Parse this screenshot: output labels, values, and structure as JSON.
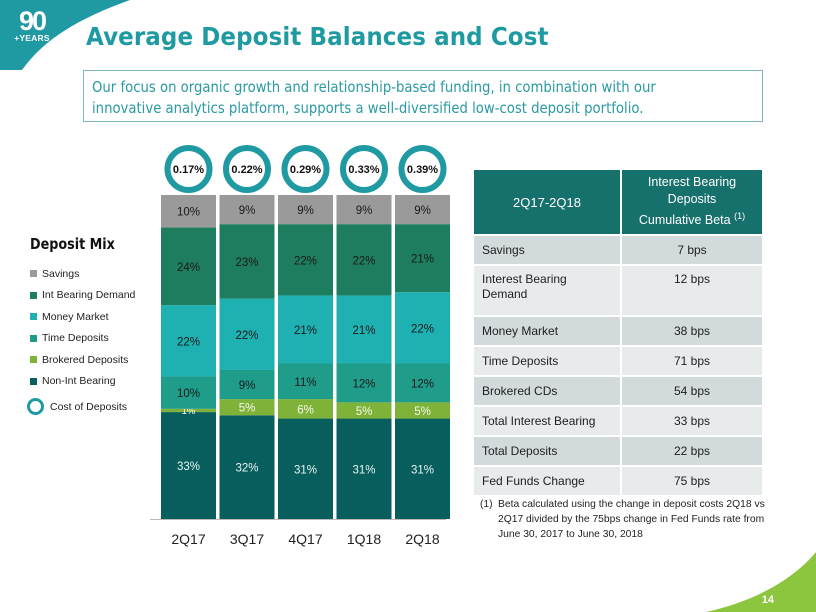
{
  "header": {
    "logo_number": "90",
    "logo_caption": "+YEARS",
    "title": "Average Deposit Balances and Cost",
    "subtitle_lines": [
      "Our focus on organic growth and relationship-based funding, in combination with our",
      "innovative analytics platform, supports a well-diversified low-cost deposit portfolio."
    ]
  },
  "colors": {
    "brand_teal": "#1f9aa2",
    "brand_green": "#8cc63f",
    "table_header": "#16706b"
  },
  "legend": {
    "title": "Deposit Mix",
    "items": [
      {
        "label": "Savings",
        "color": "#9a9a9a"
      },
      {
        "label": "Int Bearing Demand",
        "color": "#1e7d5e"
      },
      {
        "label": "Money Market",
        "color": "#1fb0b2"
      },
      {
        "label": "Time Deposits",
        "color": "#1f9c8a"
      },
      {
        "label": "Brokered Deposits",
        "color": "#7fb239"
      },
      {
        "label": "Non-Int Bearing",
        "color": "#075e5d"
      }
    ],
    "cost_label": "Cost of Deposits"
  },
  "chart_data": {
    "type": "bar",
    "stacked": true,
    "title": "Deposit Mix",
    "xlabel": "",
    "ylabel": "",
    "ylim": [
      0,
      100
    ],
    "grid": false,
    "legend_position": "left",
    "categories": [
      "2Q17",
      "3Q17",
      "4Q17",
      "1Q18",
      "2Q18"
    ],
    "series": [
      {
        "name": "Non-Int Bearing",
        "color": "#075e5d",
        "label_color": "#e8f4f2",
        "values": [
          33,
          32,
          31,
          31,
          31
        ]
      },
      {
        "name": "Brokered Deposits",
        "color": "#7fb239",
        "label_color": "#f4faec",
        "values": [
          1,
          5,
          6,
          5,
          5
        ]
      },
      {
        "name": "Time Deposits",
        "color": "#1f9c8a",
        "label_color": "#1a1a1a",
        "values": [
          10,
          9,
          11,
          12,
          12
        ]
      },
      {
        "name": "Money Market",
        "color": "#1fb0b2",
        "label_color": "#1a1a1a",
        "values": [
          22,
          22,
          21,
          21,
          22
        ]
      },
      {
        "name": "Int Bearing Demand",
        "color": "#1e7d5e",
        "label_color": "#1a1a1a",
        "values": [
          24,
          23,
          22,
          22,
          21
        ]
      },
      {
        "name": "Savings",
        "color": "#9a9a9a",
        "label_color": "#1a1a1a",
        "values": [
          10,
          9,
          9,
          9,
          9
        ]
      }
    ],
    "cost_of_deposits": {
      "name": "Cost of Deposits",
      "values": [
        0.17,
        0.22,
        0.29,
        0.33,
        0.39
      ],
      "labels": [
        "0.17%",
        "0.22%",
        "0.29%",
        "0.33%",
        "0.39%"
      ]
    }
  },
  "beta_table": {
    "header_left": "2Q17-2Q18",
    "header_right_lines": [
      "Interest Bearing",
      "Deposits",
      "Cumulative Beta"
    ],
    "header_right_footnote": "(1)",
    "rows": [
      {
        "label": "Savings",
        "value": "7 bps"
      },
      {
        "label": "Interest Bearing Demand",
        "value": "12 bps"
      },
      {
        "label": "Money Market",
        "value": "38 bps"
      },
      {
        "label": "Time Deposits",
        "value": "71 bps"
      },
      {
        "label": "Brokered CDs",
        "value": "54 bps"
      },
      {
        "label": "Total Interest Bearing",
        "value": "33 bps"
      },
      {
        "label": "Total Deposits",
        "value": "22 bps"
      },
      {
        "label": "Fed Funds Change",
        "value": "75 bps"
      }
    ]
  },
  "footnote": {
    "marker": "(1)",
    "text": "Beta calculated using the change in deposit costs 2Q18 vs 2Q17 divided by the 75bps change in Fed Funds rate from June 30, 2017 to June 30, 2018"
  },
  "page_number": "14"
}
